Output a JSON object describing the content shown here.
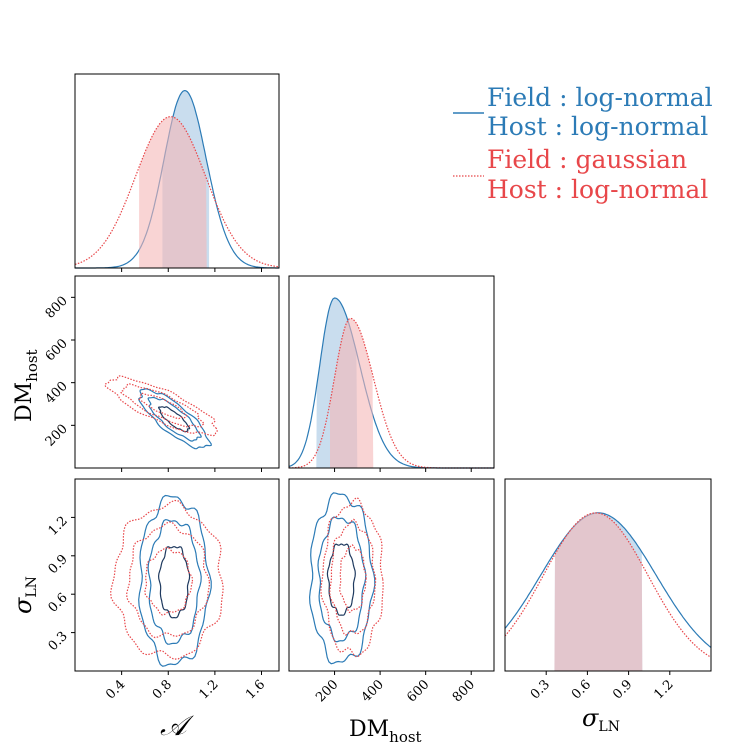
{
  "colors": {
    "blue": "#2c7bb6",
    "blue_fill": "#b7d2e8",
    "navy": "#1f3a5f",
    "red": "#e8474a",
    "red_fill": "#f5b7b7",
    "overlap_fill": "#c9a9bd"
  },
  "chart_data": {
    "type": "corner-plot",
    "parameters": [
      {
        "id": "A",
        "label": "𝒜",
        "ticks": [
          0.4,
          0.8,
          1.2,
          1.6
        ],
        "tick_labels": [
          "0.4",
          "0.8",
          "1.2",
          "1.6"
        ],
        "range": [
          0.0,
          1.75
        ]
      },
      {
        "id": "DM_host",
        "label": "DM",
        "label_sub": "host",
        "ticks": [
          200,
          400,
          600,
          800
        ],
        "tick_labels": [
          "200",
          "400",
          "600",
          "800"
        ],
        "range": [
          0,
          900
        ]
      },
      {
        "id": "sigma_LN",
        "label": "σ",
        "label_sub": "LN",
        "ticks": [
          0.3,
          0.6,
          0.9,
          1.2
        ],
        "tick_labels": [
          "0.3",
          "0.6",
          "0.9",
          "1.2"
        ],
        "range": [
          0.0,
          1.5
        ]
      }
    ],
    "series": [
      {
        "name": "Field : log-normal / Host : log-normal",
        "legend_line1": "Field :  log-normal",
        "legend_line2": "Host :  log-normal",
        "style": "solid",
        "color": "#2c7bb6",
        "marginals": {
          "A": {
            "mean": 0.95,
            "sd": 0.19,
            "interval": [
              0.75,
              1.15
            ]
          },
          "DM_host": {
            "mean": 200,
            "sd_left": 65,
            "sd_right": 110,
            "interval": [
              120,
              300
            ]
          },
          "sigma_LN": {
            "mean": 0.68,
            "sd": 0.42,
            "interval": [
              0.36,
              1.0
            ]
          }
        },
        "contours": {
          "A_DM": {
            "center": [
              0.85,
              230
            ],
            "corr": -0.8
          },
          "A_sigma": {
            "center": [
              0.85,
              0.7
            ],
            "corr": 0.0
          },
          "DM_sigma": {
            "center": [
              230,
              0.72
            ],
            "corr": 0.0
          }
        }
      },
      {
        "name": "Field : gaussian / Host : log-normal",
        "legend_line1": "Field :  gaussian",
        "legend_line2": "Host :  log-normal",
        "style": "dotted",
        "color": "#e8474a",
        "marginals": {
          "A": {
            "mean": 0.82,
            "sd": 0.3,
            "interval": [
              0.55,
              1.13
            ]
          },
          "DM_host": {
            "mean": 270,
            "sd_left": 70,
            "sd_right": 100,
            "interval": [
              180,
              370
            ]
          },
          "sigma_LN": {
            "mean": 0.66,
            "sd": 0.38,
            "interval": [
              0.36,
              1.0
            ]
          }
        },
        "contours": {
          "A_DM": {
            "center": [
              0.75,
              290
            ],
            "corr": -0.8
          },
          "A_sigma": {
            "center": [
              0.8,
              0.7
            ],
            "corr": 0.0
          },
          "DM_sigma": {
            "center": [
              280,
              0.72
            ],
            "corr": 0.0
          }
        }
      }
    ]
  }
}
